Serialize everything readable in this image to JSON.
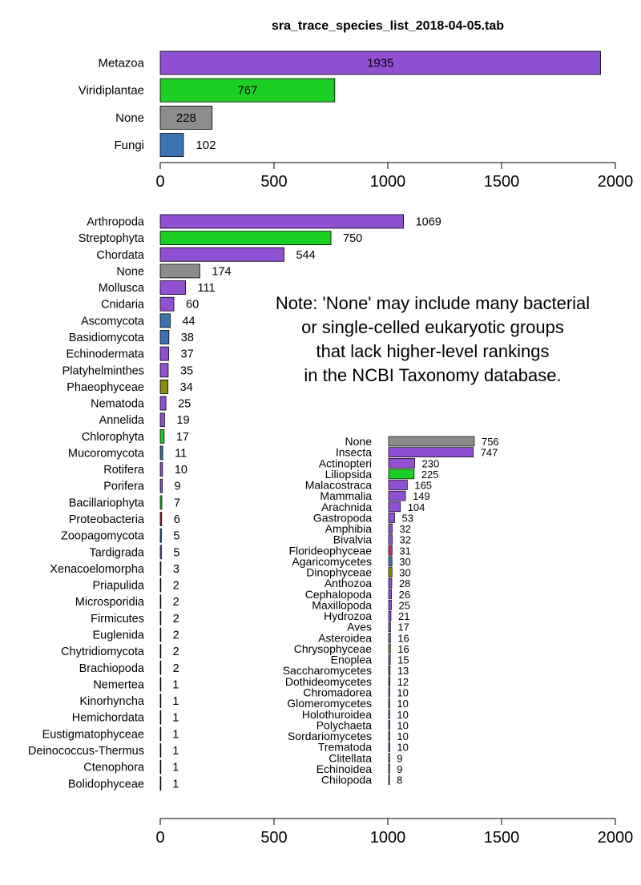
{
  "title": "sra_trace_species_list_2018-04-05.tab",
  "note_lines": [
    "Note: 'None' may include many bacterial",
    "or single-celled eukaryotic groups",
    "that lack higher-level rankings",
    "in the NCBI Taxonomy database."
  ],
  "colors": {
    "Metazoa": "#9150d4",
    "Viridiplantae": "#1ccf25",
    "None": "#8c8c8c",
    "Fungi": "#3b73b2",
    "Phaeophyceae": "#8b8b10",
    "Bacillariophyta": "#1ccf25",
    "Proteobacteria": "#c83232",
    "Florideophyceae": "#c4287a",
    "Dinophyceae": "#8b8b10",
    "Chrysophyceae": "#8b8b10",
    "Other": "#555555"
  },
  "chart_data": [
    {
      "type": "bar",
      "orientation": "horizontal",
      "xlim": [
        0,
        2000
      ],
      "ticks": [
        0,
        500,
        1000,
        1500,
        2000
      ],
      "value_labels": "inside",
      "categories": [
        "Metazoa",
        "Viridiplantae",
        "None",
        "Fungi"
      ],
      "values": [
        1935,
        767,
        228,
        102
      ],
      "groups": [
        "Metazoa",
        "Viridiplantae",
        "None",
        "Fungi"
      ]
    },
    {
      "type": "bar",
      "orientation": "horizontal",
      "xlim": [
        0,
        2000
      ],
      "ticks": [
        0,
        500,
        1000,
        1500,
        2000
      ],
      "categories": [
        "Arthropoda",
        "Streptophyta",
        "Chordata",
        "None",
        "Mollusca",
        "Cnidaria",
        "Ascomycota",
        "Basidiomycota",
        "Echinodermata",
        "Platyhelminthes",
        "Phaeophyceae",
        "Nematoda",
        "Annelida",
        "Chlorophyta",
        "Mucoromycota",
        "Rotifera",
        "Porifera",
        "Bacillariophyta",
        "Proteobacteria",
        "Zoopagomycota",
        "Tardigrada",
        "Xenacoelomorpha",
        "Priapulida",
        "Microsporidia",
        "Firmicutes",
        "Euglenida",
        "Chytridiomycota",
        "Brachiopoda",
        "Nemertea",
        "Kinorhyncha",
        "Hemichordata",
        "Eustigmatophyceae",
        "Deinococcus-Thermus",
        "Ctenophora",
        "Bolidophyceae"
      ],
      "values": [
        1069,
        750,
        544,
        174,
        111,
        60,
        44,
        38,
        37,
        35,
        34,
        25,
        19,
        17,
        11,
        10,
        9,
        7,
        6,
        5,
        5,
        3,
        2,
        2,
        2,
        2,
        2,
        2,
        1,
        1,
        1,
        1,
        1,
        1,
        1
      ],
      "groups": [
        "Metazoa",
        "Viridiplantae",
        "Metazoa",
        "None",
        "Metazoa",
        "Metazoa",
        "Fungi",
        "Fungi",
        "Metazoa",
        "Metazoa",
        "Phaeophyceae",
        "Metazoa",
        "Metazoa",
        "Viridiplantae",
        "Fungi",
        "Metazoa",
        "Metazoa",
        "Bacillariophyta",
        "Proteobacteria",
        "Fungi",
        "Metazoa",
        "Metazoa",
        "Metazoa",
        "Fungi",
        "Other",
        "Other",
        "Fungi",
        "Metazoa",
        "Metazoa",
        "Metazoa",
        "Metazoa",
        "Other",
        "Other",
        "Metazoa",
        "Other"
      ]
    },
    {
      "type": "bar",
      "orientation": "horizontal",
      "xlim": [
        0,
        2000
      ],
      "shares_axis_with": 1,
      "categories": [
        "None",
        "Insecta",
        "Actinopteri",
        "Liliopsida",
        "Malacostraca",
        "Mammalia",
        "Arachnida",
        "Gastropoda",
        "Amphibia",
        "Bivalvia",
        "Florideophyceae",
        "Agaricomycetes",
        "Dinophyceae",
        "Anthozoa",
        "Cephalopoda",
        "Maxillopoda",
        "Hydrozoa",
        "Aves",
        "Asteroidea",
        "Chrysophyceae",
        "Enoplea",
        "Saccharomycetes",
        "Dothideomycetes",
        "Chromadorea",
        "Glomeromycetes",
        "Holothuroidea",
        "Polychaeta",
        "Sordariomycetes",
        "Trematoda",
        "Clitellata",
        "Echinoidea",
        "Chilopoda"
      ],
      "values": [
        756,
        747,
        230,
        225,
        165,
        149,
        104,
        53,
        32,
        32,
        31,
        30,
        30,
        28,
        26,
        25,
        21,
        17,
        16,
        16,
        15,
        13,
        12,
        10,
        10,
        10,
        10,
        10,
        10,
        9,
        9,
        8
      ],
      "groups": [
        "None",
        "Metazoa",
        "Metazoa",
        "Viridiplantae",
        "Metazoa",
        "Metazoa",
        "Metazoa",
        "Metazoa",
        "Metazoa",
        "Metazoa",
        "Florideophyceae",
        "Fungi",
        "Dinophyceae",
        "Metazoa",
        "Metazoa",
        "Metazoa",
        "Metazoa",
        "Metazoa",
        "Metazoa",
        "Chrysophyceae",
        "Metazoa",
        "Fungi",
        "Fungi",
        "Metazoa",
        "Fungi",
        "Metazoa",
        "Metazoa",
        "Fungi",
        "Metazoa",
        "Metazoa",
        "Metazoa",
        "Metazoa"
      ]
    }
  ]
}
